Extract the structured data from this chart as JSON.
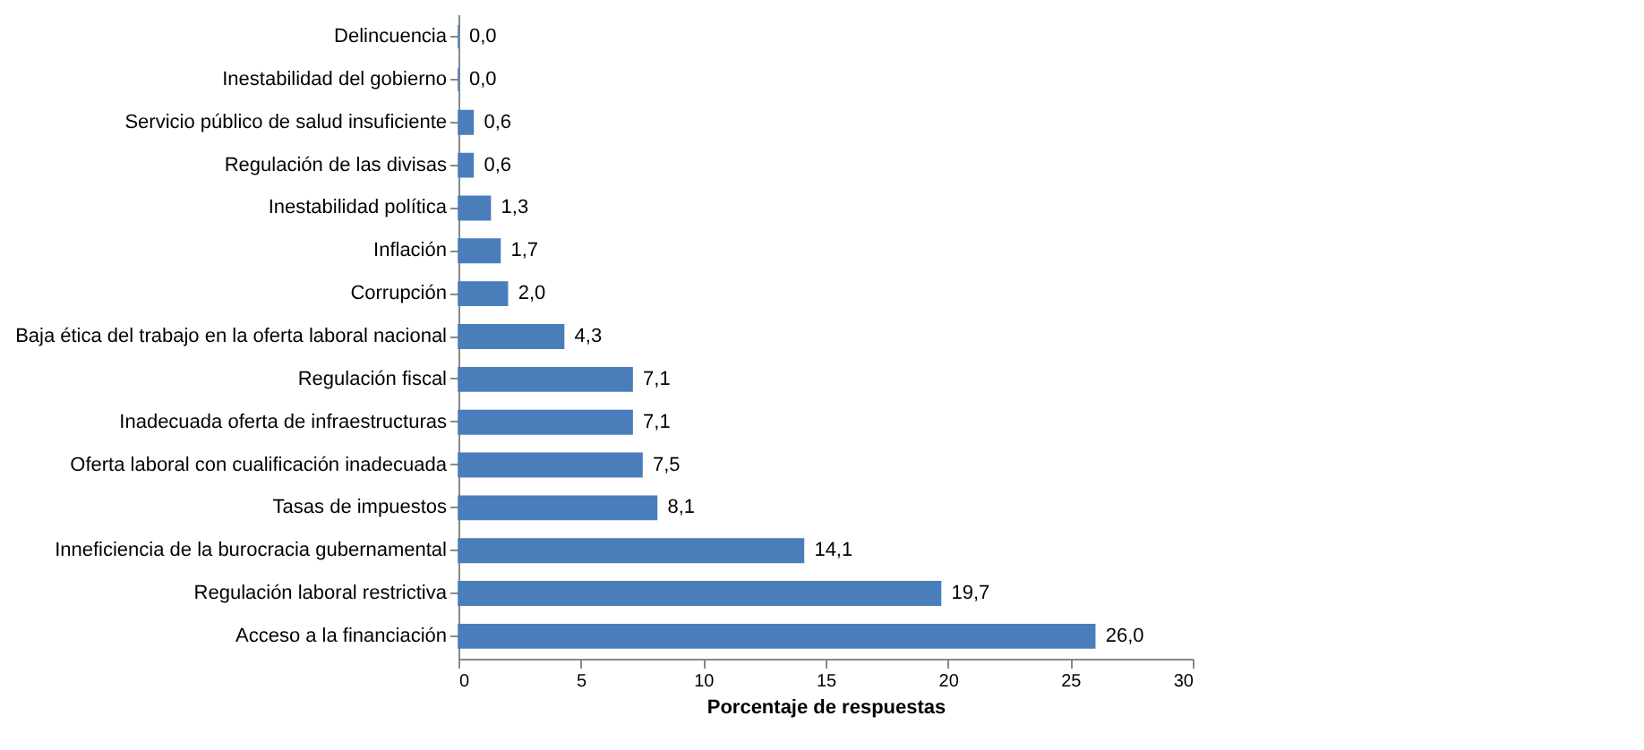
{
  "chart_data": {
    "type": "bar",
    "orientation": "horizontal",
    "xlabel": "Porcentaje de respuestas",
    "categories": [
      "Delincuencia",
      "Inestabilidad del gobierno",
      "Servicio público de salud insuficiente",
      "Regulación de las divisas",
      "Inestabilidad política",
      "Inflación",
      "Corrupción",
      "Baja ética del trabajo en la oferta laboral nacional",
      "Regulación fiscal",
      "Inadecuada oferta de infraestructuras",
      "Oferta laboral con cualificación inadecuada",
      "Tasas de impuestos",
      "Inneficiencia de la burocracia gubernamental",
      "Regulación laboral restrictiva",
      "Acceso a la financiación"
    ],
    "values": [
      0.0,
      0.0,
      0.6,
      0.6,
      1.3,
      1.7,
      2.0,
      4.3,
      7.1,
      7.1,
      7.5,
      8.1,
      14.1,
      19.7,
      26.0
    ],
    "value_labels": [
      "0,0",
      "0,0",
      "0,6",
      "0,6",
      "1,3",
      "1,7",
      "2,0",
      "4,3",
      "7,1",
      "7,1",
      "7,5",
      "8,1",
      "14,1",
      "19,7",
      "26,0"
    ],
    "color": "#4a7ebb",
    "xlim": [
      0,
      30
    ],
    "xticks": [
      0,
      5,
      10,
      15,
      20,
      25,
      30
    ],
    "grid": false
  }
}
